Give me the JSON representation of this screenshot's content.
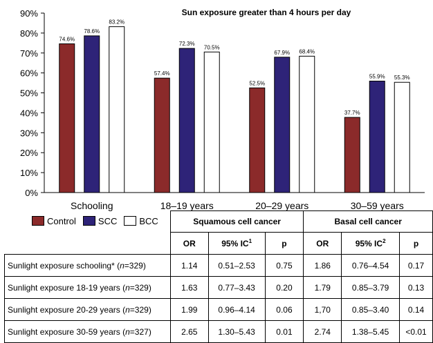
{
  "chart_data": {
    "type": "bar",
    "title": "Sun exposure greater than 4 hours per day",
    "categories": [
      "Schooling",
      "18–19 years",
      "20–29 years",
      "30–59 years"
    ],
    "series": [
      {
        "name": "Control",
        "color": "#8b2a2a",
        "values": [
          74.6,
          57.4,
          52.5,
          37.7
        ],
        "labels": [
          "74.6%",
          "57.4%",
          "52.5%",
          "37.7%"
        ]
      },
      {
        "name": "SCC",
        "color": "#2e2378",
        "values": [
          78.6,
          72.3,
          67.9,
          55.9
        ],
        "labels": [
          "78.6%",
          "72.3%",
          "67.9%",
          "55.9%"
        ]
      },
      {
        "name": "BCC",
        "color": "#ffffff",
        "values": [
          83.2,
          70.5,
          68.4,
          55.3
        ],
        "labels": [
          "83.2%",
          "70.5%",
          "68.4%",
          "55.3%"
        ]
      }
    ],
    "ylim": [
      0,
      90
    ],
    "yticks": [
      "0%",
      "10%",
      "20%",
      "30%",
      "40%",
      "50%",
      "60%",
      "70%",
      "80%",
      "90%"
    ],
    "legend": "bottom-left"
  },
  "table": {
    "group1": "Squamous cell cancer",
    "group2": "Basal cell cancer",
    "headers": {
      "or1": "OR",
      "ci1": "95% IC",
      "ci1_sup": "1",
      "p1": "p",
      "or2": "OR",
      "ci2": "95% IC",
      "ci2_sup": "2",
      "p2": "p"
    },
    "rows": [
      {
        "label_a": "Sunlight exposure schooling* (",
        "label_n": "n",
        "label_b": "=329)",
        "or1": "1.14",
        "ci1": "0.51–2.53",
        "p1": "0.75",
        "or2": "1.86",
        "ci2": "0.76–4.54",
        "p2": "0.17"
      },
      {
        "label_a": "Sunlight exposure 18-19 years (",
        "label_n": "n",
        "label_b": "=329)",
        "or1": "1.63",
        "ci1": "0.77–3.43",
        "p1": "0.20",
        "or2": "1.79",
        "ci2": "0.85–3.79",
        "p2": "0.13"
      },
      {
        "label_a": "Sunlight exposure 20-29 years (",
        "label_n": "n",
        "label_b": "=329)",
        "or1": "1.99",
        "ci1": "0.96–4.14",
        "p1": "0.06",
        "or2": "1,70",
        "ci2": "0.85–3.40",
        "p2": "0.14"
      },
      {
        "label_a": "Sunlight exposure 30-59 years (",
        "label_n": "n",
        "label_b": "=327)",
        "or1": "2.65",
        "ci1": "1.30–5.43",
        "p1": "0.01",
        "or2": "2.74",
        "ci2": "1.38–5.45",
        "p2": "<0.01"
      }
    ]
  }
}
